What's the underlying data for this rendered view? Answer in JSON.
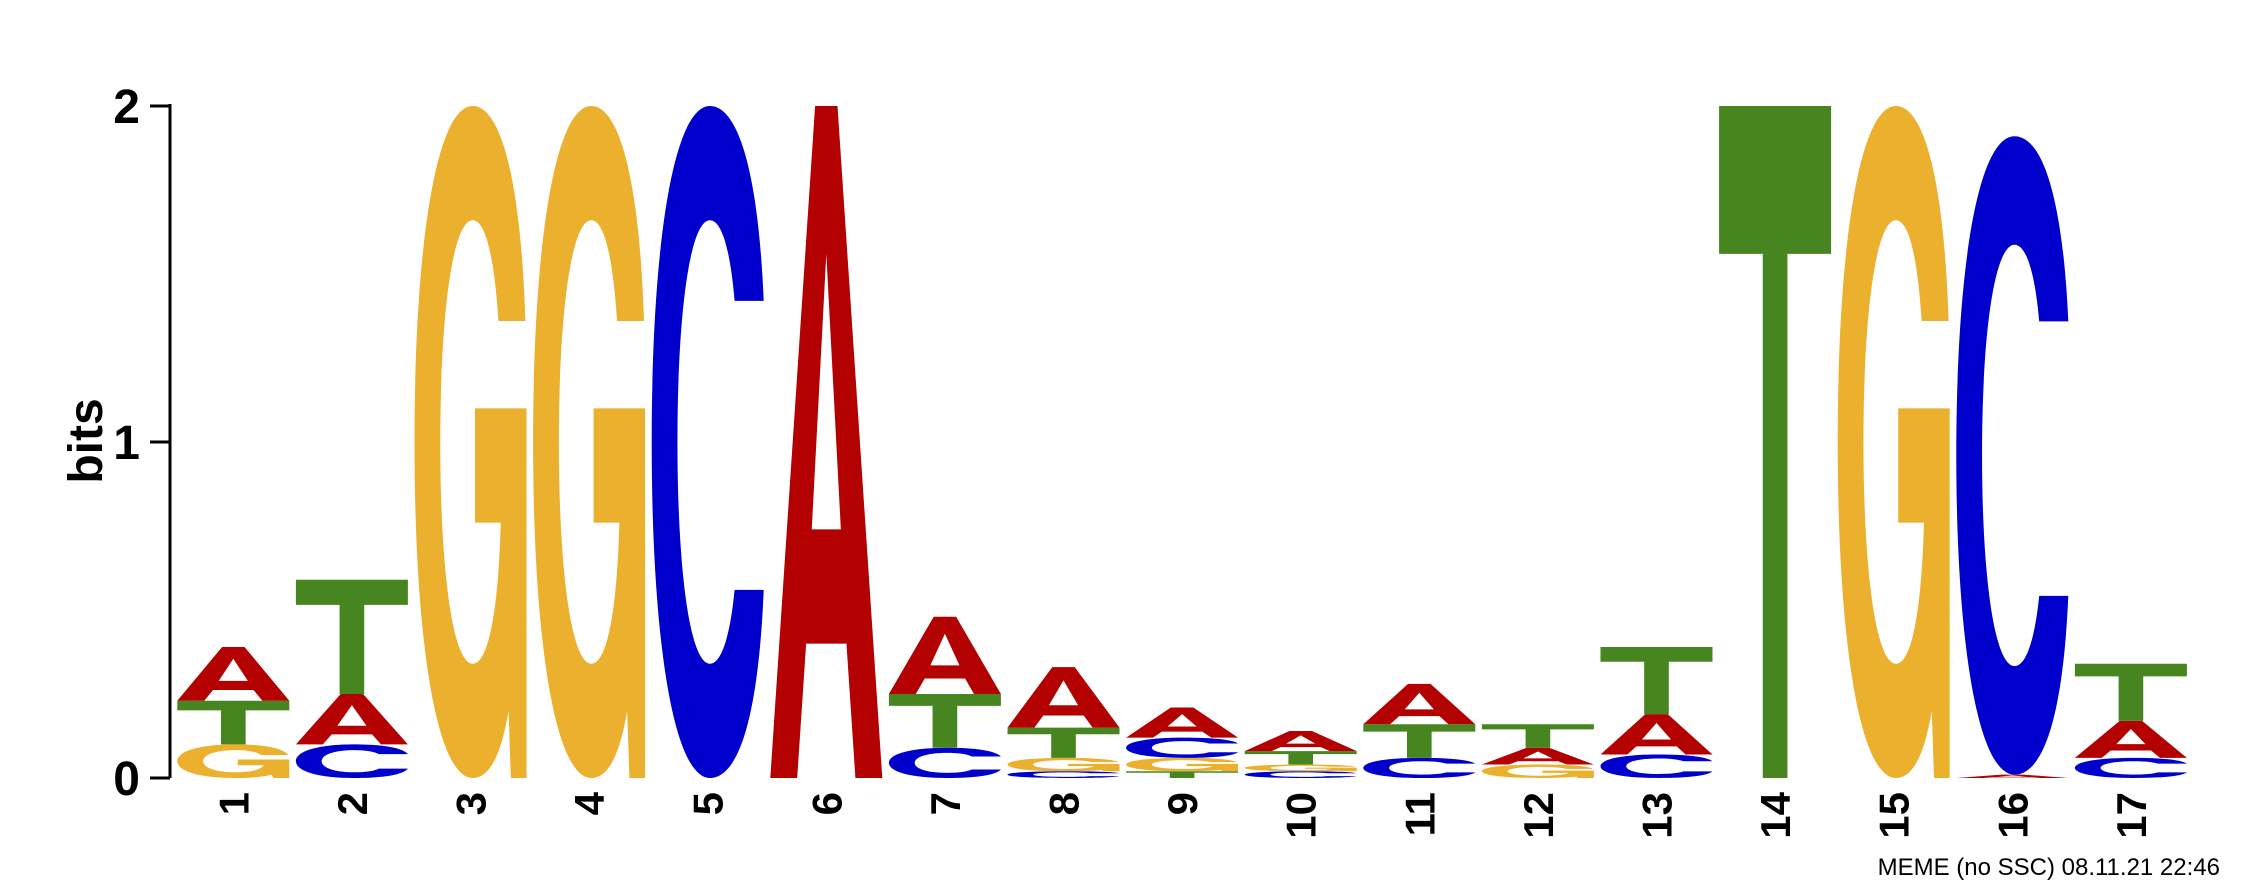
{
  "chart_data": {
    "type": "sequence-logo",
    "ylabel": "bits",
    "ylim": [
      0,
      2
    ],
    "yticks": [
      "0",
      "1",
      "2"
    ],
    "positions": [
      {
        "label": "1",
        "stack": [
          {
            "letter": "G",
            "height": 0.1
          },
          {
            "letter": "T",
            "height": 0.13
          },
          {
            "letter": "A",
            "height": 0.16
          }
        ]
      },
      {
        "label": "2",
        "stack": [
          {
            "letter": "C",
            "height": 0.1
          },
          {
            "letter": "A",
            "height": 0.15
          },
          {
            "letter": "T",
            "height": 0.34
          }
        ]
      },
      {
        "label": "3",
        "stack": [
          {
            "letter": "G",
            "height": 2.0
          }
        ]
      },
      {
        "label": "4",
        "stack": [
          {
            "letter": "G",
            "height": 2.0
          }
        ]
      },
      {
        "label": "5",
        "stack": [
          {
            "letter": "C",
            "height": 2.0
          }
        ]
      },
      {
        "label": "6",
        "stack": [
          {
            "letter": "A",
            "height": 2.0
          }
        ]
      },
      {
        "label": "7",
        "stack": [
          {
            "letter": "C",
            "height": 0.09
          },
          {
            "letter": "T",
            "height": 0.16
          },
          {
            "letter": "A",
            "height": 0.23
          }
        ]
      },
      {
        "label": "8",
        "stack": [
          {
            "letter": "C",
            "height": 0.02
          },
          {
            "letter": "G",
            "height": 0.04
          },
          {
            "letter": "T",
            "height": 0.09
          },
          {
            "letter": "A",
            "height": 0.18
          }
        ]
      },
      {
        "label": "9",
        "stack": [
          {
            "letter": "T",
            "height": 0.02
          },
          {
            "letter": "G",
            "height": 0.04
          },
          {
            "letter": "C",
            "height": 0.06
          },
          {
            "letter": "A",
            "height": 0.09
          }
        ]
      },
      {
        "label": "10",
        "stack": [
          {
            "letter": "C",
            "height": 0.02
          },
          {
            "letter": "G",
            "height": 0.02
          },
          {
            "letter": "T",
            "height": 0.04
          },
          {
            "letter": "A",
            "height": 0.06
          }
        ]
      },
      {
        "label": "11",
        "stack": [
          {
            "letter": "C",
            "height": 0.06
          },
          {
            "letter": "T",
            "height": 0.1
          },
          {
            "letter": "A",
            "height": 0.12
          }
        ]
      },
      {
        "label": "12",
        "stack": [
          {
            "letter": "G",
            "height": 0.04
          },
          {
            "letter": "A",
            "height": 0.05
          },
          {
            "letter": "T",
            "height": 0.07
          }
        ]
      },
      {
        "label": "13",
        "stack": [
          {
            "letter": "C",
            "height": 0.07
          },
          {
            "letter": "A",
            "height": 0.12
          },
          {
            "letter": "T",
            "height": 0.2
          }
        ]
      },
      {
        "label": "14",
        "stack": [
          {
            "letter": "T",
            "height": 2.0
          }
        ]
      },
      {
        "label": "15",
        "stack": [
          {
            "letter": "G",
            "height": 2.0
          }
        ]
      },
      {
        "label": "16",
        "stack": [
          {
            "letter": "A",
            "height": 0.01
          },
          {
            "letter": "C",
            "height": 1.9
          }
        ]
      },
      {
        "label": "17",
        "stack": [
          {
            "letter": "C",
            "height": 0.06
          },
          {
            "letter": "A",
            "height": 0.11
          },
          {
            "letter": "T",
            "height": 0.17
          }
        ]
      }
    ],
    "colors": {
      "A": "#b30000",
      "C": "#0000cc",
      "G": "#ebb02d",
      "T": "#478521"
    },
    "footer": "MEME (no SSC) 08.11.21 22:46"
  }
}
